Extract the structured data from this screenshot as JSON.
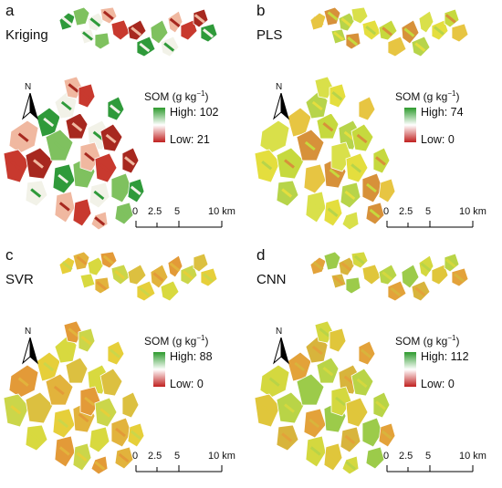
{
  "panels": [
    {
      "id": "a",
      "letter": "a",
      "method": "Kriging",
      "legend_title": "SOM (g kg",
      "legend_unit_exp": "−1",
      "legend_close": ")",
      "high": "High: 102",
      "low": "Low: 21",
      "ramp": [
        "#2e9a2e",
        "#ffffff",
        "#c0201f"
      ]
    },
    {
      "id": "b",
      "letter": "b",
      "method": "PLS",
      "legend_title": "SOM (g kg",
      "legend_unit_exp": "−1",
      "legend_close": ")",
      "high": "High: 74",
      "low": "Low: 0",
      "ramp": [
        "#2e9a2e",
        "#ffffff",
        "#c0201f"
      ]
    },
    {
      "id": "c",
      "letter": "c",
      "method": "SVR",
      "legend_title": "SOM (g kg",
      "legend_unit_exp": "−1",
      "legend_close": ")",
      "high": "High: 88",
      "low": "Low: 0",
      "ramp": [
        "#2e9a2e",
        "#ffffff",
        "#c0201f"
      ]
    },
    {
      "id": "d",
      "letter": "d",
      "method": "CNN",
      "legend_title": "SOM (g kg",
      "legend_unit_exp": "−1",
      "legend_close": ")",
      "high": "High: 112",
      "low": "Low: 0",
      "ramp": [
        "#2e9a2e",
        "#ffffff",
        "#c0201f"
      ]
    }
  ],
  "north_label": "N",
  "scale_ticks": [
    "0",
    "2.5",
    "5",
    "10 km"
  ],
  "palettes": {
    "a": [
      "#2f9a3a",
      "#7fc15f",
      "#f2f2e8",
      "#f0b8a0",
      "#c8392e",
      "#a7281f"
    ],
    "b": [
      "#d9e04a",
      "#e4de3e",
      "#c6d93e",
      "#e7c542",
      "#d7913a",
      "#b7d44a"
    ],
    "c": [
      "#e6cf3a",
      "#e2b33c",
      "#d8d93f",
      "#e39a38",
      "#cbd64a",
      "#dcc040"
    ],
    "d": [
      "#d4d83f",
      "#e0c63b",
      "#b9d447",
      "#e3a23a",
      "#9ccb4a",
      "#d8b43c"
    ]
  }
}
